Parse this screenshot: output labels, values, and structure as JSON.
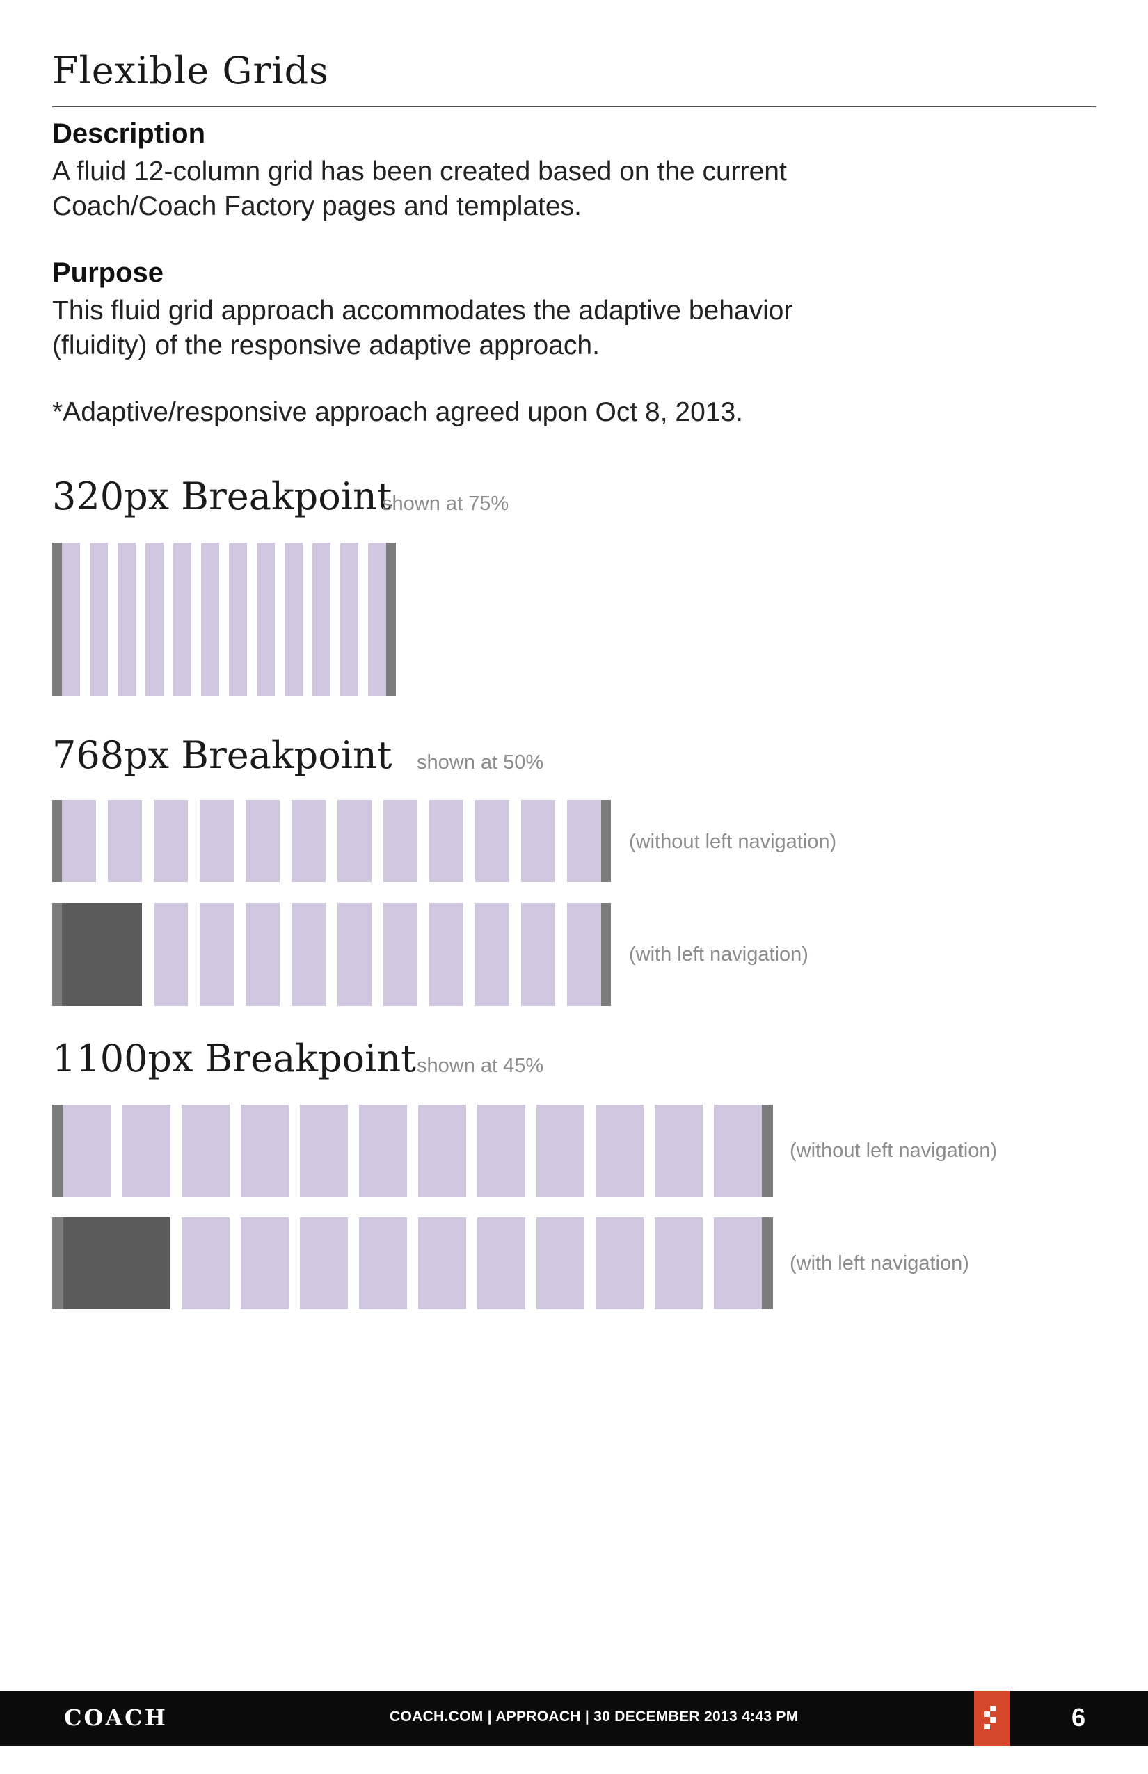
{
  "header": {
    "title": "Flexible Grids"
  },
  "description": {
    "label": "Description",
    "line1": "A fluid 12-column grid has been created based on the current",
    "line2": "Coach/Coach Factory pages and templates."
  },
  "purpose": {
    "label": "Purpose",
    "line1": "This fluid grid approach accommodates the adaptive behavior",
    "line2": "(fluidity) of the responsive adaptive approach."
  },
  "note": "*Adaptive/responsive approach agreed upon Oct 8, 2013.",
  "breakpoints": {
    "bp320": {
      "title": "320px Breakpoint",
      "scale": "shown at 75%",
      "columns": 12
    },
    "bp768": {
      "title": "768px Breakpoint",
      "scale": "shown at 50%",
      "columns": 12,
      "caption_without_nav": "(without left navigation)",
      "caption_with_nav": "(with left navigation)"
    },
    "bp1100": {
      "title": "1100px Breakpoint",
      "scale": "shown at 45%",
      "columns": 12,
      "caption_without_nav": "(without left navigation)",
      "caption_with_nav": "(with left navigation)"
    }
  },
  "colors": {
    "column": "#d1c6e0",
    "margin": "#7c7c7c",
    "navigation": "#5b5b5c",
    "brand_mark": "#d4472b"
  },
  "footer": {
    "logo": "COACH",
    "meta": "COACH.COM | APPROACH | 30 DECEMBER 2013 4:43 PM",
    "page_number": "6"
  }
}
